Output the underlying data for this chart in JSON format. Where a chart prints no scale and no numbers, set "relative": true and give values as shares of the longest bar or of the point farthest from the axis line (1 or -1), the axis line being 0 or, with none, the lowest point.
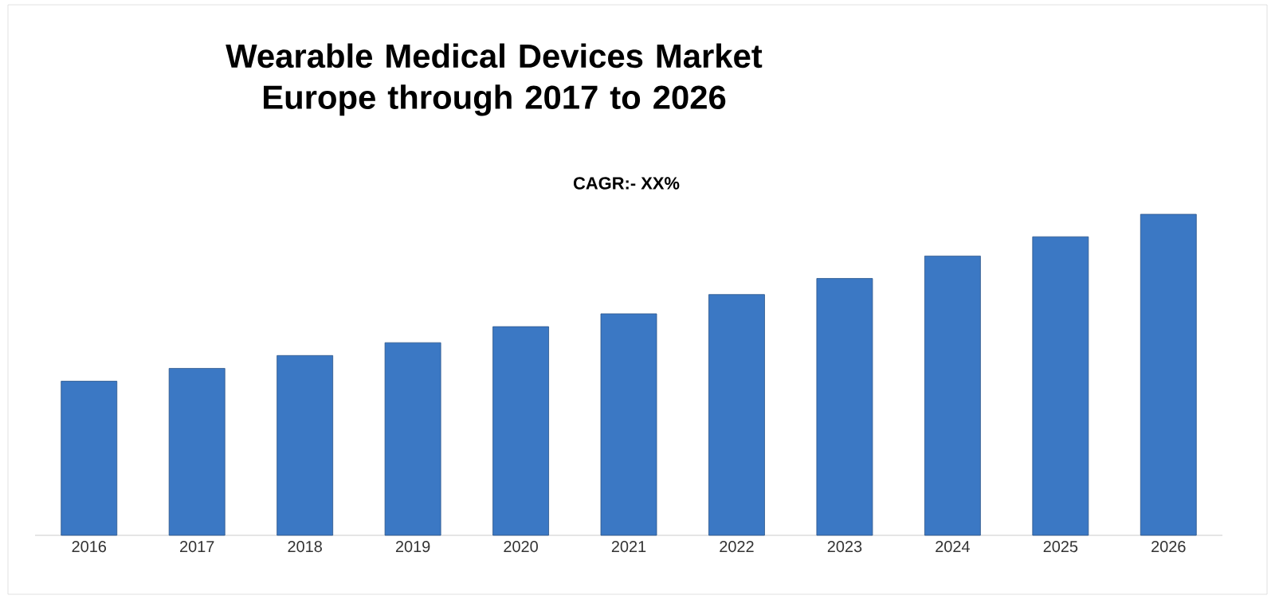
{
  "chart_data": {
    "type": "bar",
    "title": "Wearable Medical Devices Market Europe through 2017 to 2026",
    "subtitle": "CAGR:- XX%",
    "categories": [
      "2016",
      "2017",
      "2018",
      "2019",
      "2020",
      "2021",
      "2022",
      "2023",
      "2024",
      "2025",
      "2026"
    ],
    "values": [
      0.48,
      0.52,
      0.56,
      0.6,
      0.65,
      0.69,
      0.75,
      0.8,
      0.87,
      0.93,
      1
    ],
    "color": "#3b78c4",
    "relative": true
  }
}
